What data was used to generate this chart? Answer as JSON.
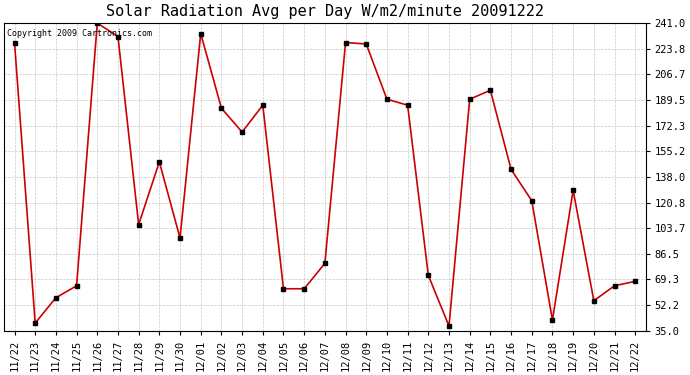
{
  "title": "Solar Radiation Avg per Day W/m2/minute 20091222",
  "copyright": "Copyright 2009 Cartronics.com",
  "dates": [
    "11/22",
    "11/23",
    "11/24",
    "11/25",
    "11/26",
    "11/27",
    "11/28",
    "11/29",
    "11/30",
    "12/01",
    "12/02",
    "12/03",
    "12/04",
    "12/05",
    "12/06",
    "12/07",
    "12/08",
    "12/09",
    "12/10",
    "12/11",
    "12/12",
    "12/13",
    "12/14",
    "12/15",
    "12/16",
    "12/17",
    "12/18",
    "12/19",
    "12/20",
    "12/21",
    "12/22"
  ],
  "values": [
    228.0,
    40.0,
    57.0,
    65.0,
    241.0,
    232.0,
    106.0,
    148.0,
    97.0,
    234.0,
    184.0,
    168.0,
    186.0,
    63.0,
    63.0,
    80.0,
    228.0,
    227.0,
    190.0,
    186.0,
    72.0,
    38.0,
    190.0,
    196.0,
    143.0,
    122.0,
    42.0,
    129.0,
    55.0,
    65.0,
    68.0
  ],
  "line_color": "#cc0000",
  "marker_color": "#000000",
  "bg_color": "#ffffff",
  "plot_bg_color": "#ffffff",
  "grid_color": "#b0b0b0",
  "yticks": [
    35.0,
    52.2,
    69.3,
    86.5,
    103.7,
    120.8,
    138.0,
    155.2,
    172.3,
    189.5,
    206.7,
    223.8,
    241.0
  ],
  "ylim_min": 35.0,
  "ylim_max": 241.0,
  "title_fontsize": 11,
  "tick_fontsize": 7.5,
  "copyright_fontsize": 6
}
